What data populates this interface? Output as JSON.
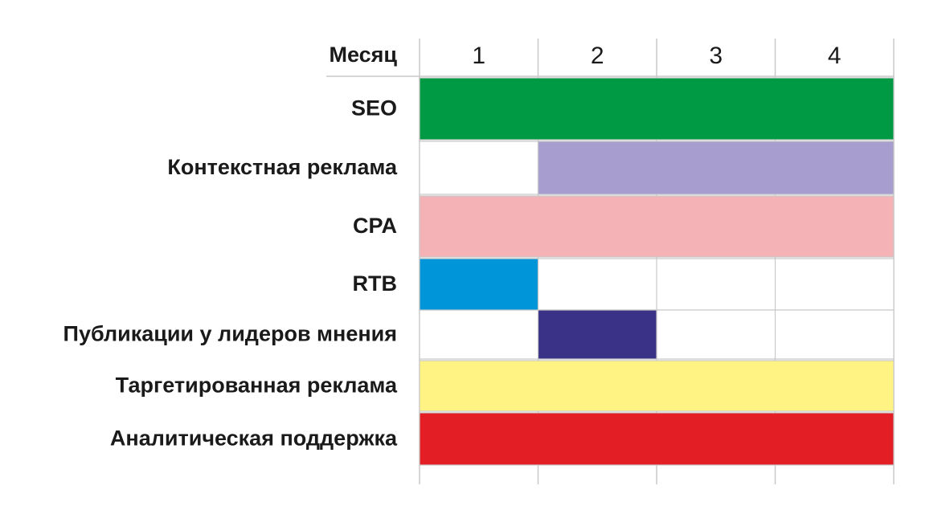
{
  "chart_data": {
    "type": "gantt",
    "header_label": "Месяц",
    "months": [
      "1",
      "2",
      "3",
      "4"
    ],
    "tasks": [
      {
        "label": "SEO",
        "start": 1,
        "end": 4,
        "color": "#009a44"
      },
      {
        "label": "Контекстная реклама",
        "start": 2,
        "end": 4,
        "color": "#a79ecf"
      },
      {
        "label": "CPA",
        "start": 1,
        "end": 4,
        "color": "#f4b1b6"
      },
      {
        "label": "RTB",
        "start": 1,
        "end": 1,
        "color": "#0094d8"
      },
      {
        "label": "Публикации у лидеров мнения",
        "start": 2,
        "end": 2,
        "color": "#3a3287"
      },
      {
        "label": "Таргетированная реклама",
        "start": 1,
        "end": 4,
        "color": "#fff384"
      },
      {
        "label": "Аналитическая поддержка",
        "start": 1,
        "end": 4,
        "color": "#e31e24"
      }
    ],
    "grid": true
  }
}
